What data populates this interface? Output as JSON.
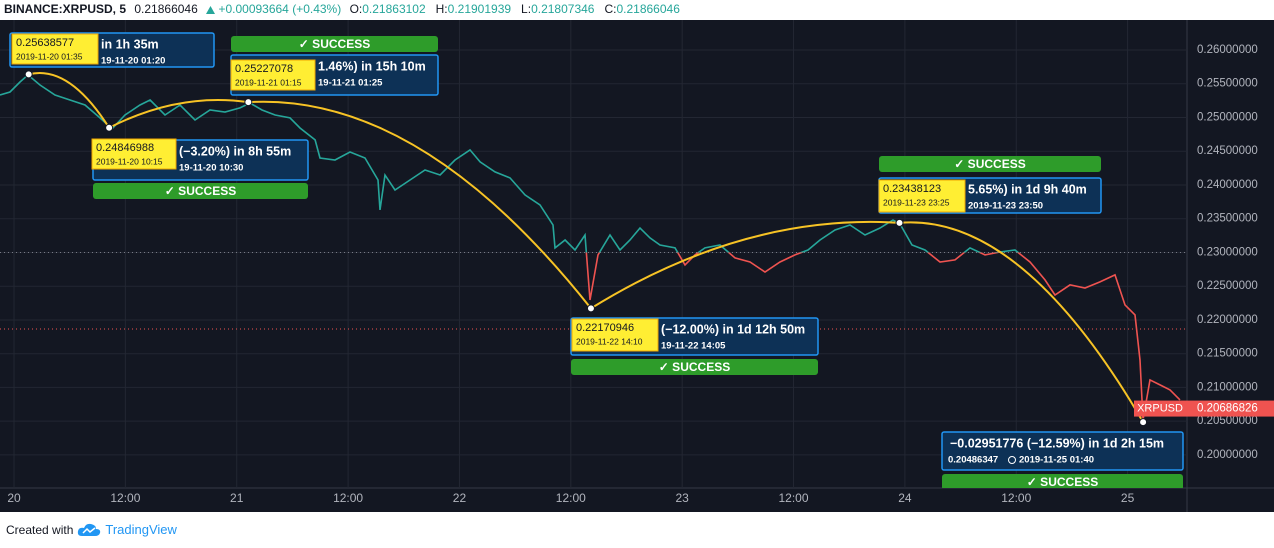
{
  "header": {
    "symbol": "BINANCE:XRPUSD, 5",
    "price": 0.21866046,
    "change": "+0.00093664 (+0.43%)",
    "ohlc": [
      {
        "label": "O:",
        "value": 0.21863102
      },
      {
        "label": "H:",
        "value": 0.21901939
      },
      {
        "label": "L:",
        "value": 0.21807346
      },
      {
        "label": "C:",
        "value": 0.21866046
      }
    ]
  },
  "chart_data": {
    "type": "line",
    "series": [
      {
        "name": "XRPUSD",
        "color": "#26a69a",
        "down_color": "#ef5350",
        "x": [
          -1.51,
          -0.43,
          0.65,
          1.51,
          2.8,
          4.42,
          6.03,
          7.65,
          9.27,
          10.56,
          11.96,
          13.58,
          14.66,
          16.27,
          17.89,
          19.5,
          21.12,
          22.74,
          24.35,
          25.43,
          26.72,
          28.13,
          29.74,
          30.82,
          32.44,
          32.97,
          34.59,
          36.21,
          37.82,
          39.22,
          39.44,
          39.98,
          41.06,
          42.67,
          44.29,
          45.91,
          47.52,
          49.14,
          50.22,
          51.83,
          53.45,
          55.06,
          56.68,
          58.08,
          58.3,
          59.38,
          60.45,
          61.53,
          62.07,
          62.93,
          64.22,
          65.3,
          66.38,
          67.46,
          68.53,
          69.61,
          71.23,
          72.31,
          73.38,
          74.46,
          76.08,
          77.69,
          79.31,
          80.93,
          82.54,
          84.16,
          85.56,
          86.85,
          88.47,
          90.09,
          91.7,
          93.32,
          94.72,
          95.47,
          96.77,
          98.17,
          99.78,
          101.4,
          103.02,
          104.63,
          106.25,
          107.87,
          109.48,
          111.1,
          112.18,
          113.79,
          115.41,
          117.03,
          118.64,
          119.72,
          120.8,
          121.34,
          121.66,
          122.41,
          123.49,
          124.57,
          125.65
        ],
        "values": [
          0.25333,
          0.25378,
          0.25526,
          0.2563,
          0.25481,
          0.25333,
          0.25259,
          0.25185,
          0.24993,
          0.2483,
          0.25037,
          0.25185,
          0.25259,
          0.25037,
          0.25185,
          0.24963,
          0.25111,
          0.25081,
          0.25141,
          0.25215,
          0.25111,
          0.25037,
          0.24993,
          0.24844,
          0.24667,
          0.244,
          0.2437,
          0.24489,
          0.244,
          0.24074,
          0.2363,
          0.24148,
          0.23926,
          0.24074,
          0.24222,
          0.24148,
          0.2437,
          0.24519,
          0.24341,
          0.24193,
          0.24104,
          0.23852,
          0.23704,
          0.23407,
          0.23067,
          0.23185,
          0.23037,
          0.23259,
          0.22296,
          0.22963,
          0.23259,
          0.23037,
          0.23185,
          0.23363,
          0.23215,
          0.23111,
          0.23067,
          0.22815,
          0.22963,
          0.23067,
          0.23111,
          0.22919,
          0.22859,
          0.22711,
          0.22859,
          0.22963,
          0.23037,
          0.23185,
          0.23333,
          0.23407,
          0.23259,
          0.23363,
          0.23481,
          0.23422,
          0.23111,
          0.23037,
          0.22859,
          0.22889,
          0.23067,
          0.22963,
          0.23007,
          0.23037,
          0.22859,
          0.22593,
          0.2237,
          0.22519,
          0.22474,
          0.22563,
          0.22667,
          0.22222,
          0.22074,
          0.21407,
          0.20519,
          0.21111,
          0.21037,
          0.20963,
          0.20815
        ]
      }
    ],
    "baseline": 0.23,
    "last_value": 0.20686826,
    "xlim": [
      -1.51,
      126.4
    ],
    "ylim": [
      0.1951,
      0.2637
    ],
    "xticks": [
      {
        "value": 0,
        "label": "20"
      },
      {
        "value": 12,
        "label": "12:00"
      },
      {
        "value": 24,
        "label": "21"
      },
      {
        "value": 36,
        "label": "12:00"
      },
      {
        "value": 48,
        "label": "22"
      },
      {
        "value": 60,
        "label": "12:00"
      },
      {
        "value": 72,
        "label": "23"
      },
      {
        "value": 84,
        "label": "12:00"
      },
      {
        "value": 96,
        "label": "24"
      },
      {
        "value": 108,
        "label": "12:00"
      },
      {
        "value": 120,
        "label": "25"
      }
    ],
    "yticks": [
      {
        "value": 0.2,
        "label": "0.20000000"
      },
      {
        "value": 0.205,
        "label": "0.20500000"
      },
      {
        "value": 0.21,
        "label": "0.21000000"
      },
      {
        "value": 0.215,
        "label": "0.21500000"
      },
      {
        "value": 0.22,
        "label": "0.22000000"
      },
      {
        "value": 0.225,
        "label": "0.22500000"
      },
      {
        "value": 0.23,
        "label": "0.23000000"
      },
      {
        "value": 0.235,
        "label": "0.23500000"
      },
      {
        "value": 0.24,
        "label": "0.24000000"
      },
      {
        "value": 0.245,
        "label": "0.24500000"
      },
      {
        "value": 0.25,
        "label": "0.25000000"
      },
      {
        "value": 0.255,
        "label": "0.25500000"
      },
      {
        "value": 0.26,
        "label": "0.26000000"
      }
    ],
    "grid": true,
    "annotations": [
      {
        "price": 0.25638577,
        "x": 1.58,
        "time": "2019-11-20 01:35",
        "change": "in 1h 35m",
        "end": "19-11-20  01:20"
      },
      {
        "price": 0.24846988,
        "x": 10.25,
        "time": "2019-11-20 10:15",
        "change": "(−3.20%) in 8h 55m",
        "end": "19-11-20  10:30",
        "status": "✓ SUCCESS"
      },
      {
        "price": 0.25227078,
        "x": 25.25,
        "time": "2019-11-21 01:15",
        "change": "1.46%) in 15h 10m",
        "end": "19-11-21  01:25",
        "status": "✓ SUCCESS"
      },
      {
        "price": 0.22170946,
        "x": 62.17,
        "time": "2019-11-22 14:10",
        "change": "(−12.00%) in 1d 12h 50m",
        "end": "19-11-22  14:05",
        "status": "✓ SUCCESS"
      },
      {
        "price": 0.23438123,
        "x": 95.42,
        "time": "2019-11-23 23:25",
        "change": "5.65%) in 1d 9h 40m",
        "end": "2019-11-23  23:50",
        "status": "✓ SUCCESS"
      },
      {
        "price": 0.20486347,
        "x": 121.67,
        "time": "2019-11-25 01:40",
        "change": "−0.02951776 (−12.59%) in 1d 2h 15m",
        "status": "✓ SUCCESS"
      }
    ]
  },
  "footer": {
    "text": "Created with",
    "brand": "TradingView"
  }
}
